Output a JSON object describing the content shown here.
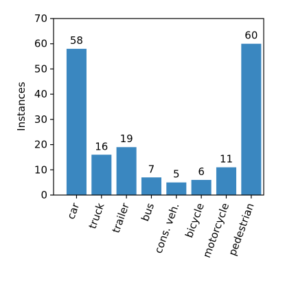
{
  "chart_data": {
    "type": "bar",
    "ylabel": "Instances",
    "categories": [
      "car",
      "truck",
      "trailer",
      "bus",
      "cons. veh.",
      "bicycle",
      "motorcycle",
      "pedestrian"
    ],
    "values": [
      58,
      16,
      19,
      7,
      5,
      6,
      11,
      60
    ],
    "color": "#3a87c0",
    "ylim": [
      0,
      70
    ],
    "yticks": [
      0,
      10,
      20,
      30,
      40,
      50,
      60,
      70
    ]
  }
}
